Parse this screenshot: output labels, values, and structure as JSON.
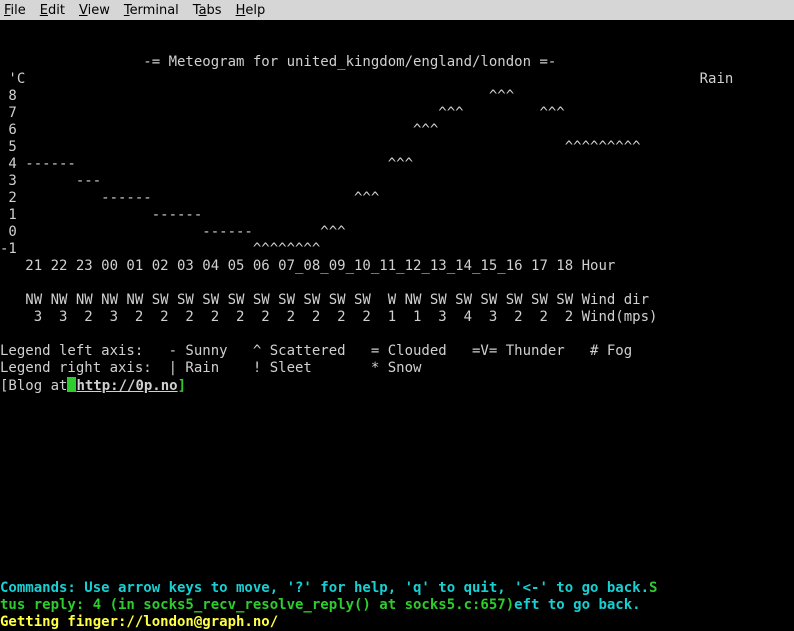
{
  "menu": {
    "items": [
      {
        "label": "File",
        "accel": "F"
      },
      {
        "label": "Edit",
        "accel": "E"
      },
      {
        "label": "View",
        "accel": "V"
      },
      {
        "label": "Terminal",
        "accel": "T"
      },
      {
        "label": "Tabs",
        "accel": "a"
      },
      {
        "label": "Help",
        "accel": "H"
      }
    ]
  },
  "meteogram": {
    "title": "-= Meteogram for united_kingdom/england/london =-",
    "ylabel_left": "'C",
    "ylabel_right": "Rain",
    "y_ticks": [
      "8",
      "7",
      "6",
      "5",
      "4",
      "3",
      "2",
      "1",
      "0",
      "-1"
    ],
    "chart_rows": [
      "                                                       ^^^               ",
      "                                                 ^^^         ^^^         ",
      "                                              ^^^                        ",
      "                                                                ^^^^^^^^^",
      "------                                     ^^^                           ",
      "      ---                                                                ",
      "         ------                        ^^^                               ",
      "               ------                                                    ",
      "                     ------        ^^^                                   ",
      "                           ^^^^^^^^                                      "
    ],
    "hours": [
      "21",
      "22",
      "23",
      "00",
      "01",
      "02",
      "03",
      "04",
      "05",
      "06",
      "07",
      "08",
      "09",
      "10",
      "11",
      "12",
      "13",
      "14",
      "15",
      "16",
      "17",
      "18"
    ],
    "hour_suffix": "Hour",
    "hour_sep_style": {
      "plain_until": 9,
      "underscore_from": 9,
      "underscore_to": 18
    },
    "wind_dir": [
      "NW",
      "NW",
      "NW",
      "NW",
      "NW",
      "SW",
      "SW",
      "SW",
      "SW",
      "SW",
      "SW",
      "SW",
      "SW",
      "SW",
      "W",
      "NW",
      "SW",
      "SW",
      "SW",
      "SW",
      "SW",
      "SW"
    ],
    "wind_dir_suffix": "Wind dir",
    "wind_mps": [
      "3",
      "3",
      "2",
      "3",
      "2",
      "2",
      "2",
      "2",
      "2",
      "2",
      "2",
      "2",
      "2",
      "2",
      "1",
      "1",
      "3",
      "4",
      "3",
      "2",
      "2",
      "2"
    ],
    "wind_mps_suffix": "Wind(mps)",
    "legend_left": "Legend left axis:   - Sunny   ^ Scattered   = Clouded   =V= Thunder   # Fog",
    "legend_right": "Legend right axis:  | Rain    ! Sleet       * Snow",
    "blog_prefix": "[Blog at",
    "blog_url": "http://0p.no",
    "blog_suffix": "]"
  },
  "status": {
    "line1_a": "Commands: Use arrow keys to move, '?' for help, 'q' to quit, '<-' to go back.",
    "line1_b": "S",
    "line2_a": "tus reply: 4 (in socks5_recv_resolve_reply() at socks5.c:657)",
    "line2_b": "eft to go back.",
    "line3": "Getting finger://london@graph.no/"
  },
  "colors": {
    "bg": "#000000",
    "fg": "#d0d0d0",
    "menubar_bg": "#d6d6d6",
    "cyan": "#17d0d3",
    "green": "#2ecc2e",
    "yellow": "#ffff44"
  }
}
